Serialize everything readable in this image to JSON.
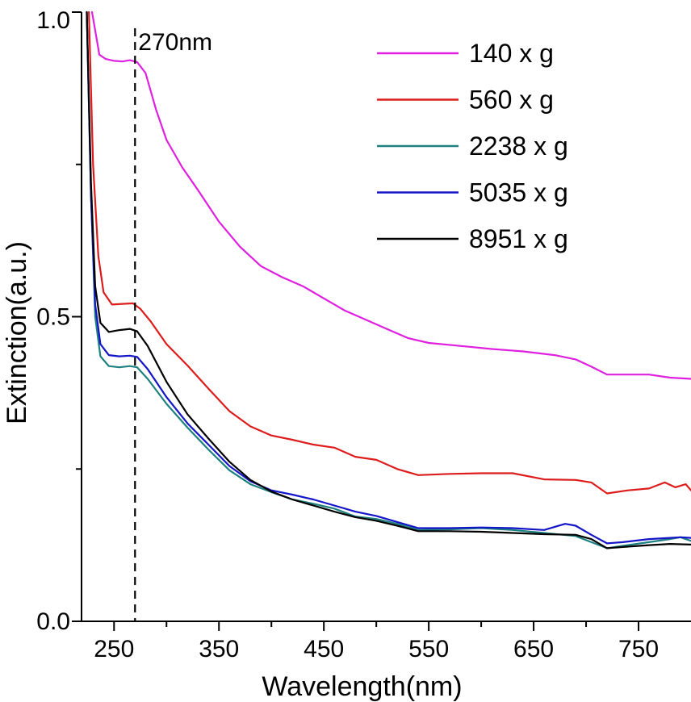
{
  "chart_data": {
    "type": "line",
    "title": "",
    "xlabel": "Wavelength(nm)",
    "ylabel": "Extinction(a.u.)",
    "xlim": [
      219,
      800
    ],
    "ylim": [
      0.0,
      1.0
    ],
    "x_ticks": [
      250,
      350,
      450,
      550,
      650,
      750
    ],
    "x_tick_labels": [
      "250",
      "350",
      "450",
      "550",
      "650",
      "750"
    ],
    "x_minor_ticks": [
      300,
      400,
      500,
      600,
      700
    ],
    "y_ticks": [
      0.0,
      0.5,
      1.0
    ],
    "y_tick_labels": [
      "0.0",
      "0.5",
      "1.0"
    ],
    "y_minor_ticks": [
      0.25,
      0.75
    ],
    "grid": false,
    "legend_position": "top-right",
    "annotations": [
      {
        "type": "vline",
        "x": 270,
        "label": "270nm",
        "style": "dashed",
        "color": "#000000"
      }
    ],
    "series": [
      {
        "name": "140 x g",
        "color": "#e020e0",
        "points": [
          [
            229,
            1.0
          ],
          [
            232,
            0.97
          ],
          [
            236,
            0.93
          ],
          [
            242,
            0.923
          ],
          [
            250,
            0.92
          ],
          [
            258,
            0.919
          ],
          [
            265,
            0.921
          ],
          [
            272,
            0.918
          ],
          [
            280,
            0.9
          ],
          [
            290,
            0.84
          ],
          [
            300,
            0.79
          ],
          [
            315,
            0.745
          ],
          [
            330,
            0.708
          ],
          [
            350,
            0.656
          ],
          [
            370,
            0.615
          ],
          [
            390,
            0.583
          ],
          [
            410,
            0.565
          ],
          [
            430,
            0.55
          ],
          [
            450,
            0.53
          ],
          [
            470,
            0.51
          ],
          [
            490,
            0.495
          ],
          [
            510,
            0.48
          ],
          [
            530,
            0.465
          ],
          [
            550,
            0.457
          ],
          [
            580,
            0.452
          ],
          [
            610,
            0.447
          ],
          [
            640,
            0.443
          ],
          [
            670,
            0.437
          ],
          [
            690,
            0.43
          ],
          [
            705,
            0.418
          ],
          [
            720,
            0.405
          ],
          [
            735,
            0.405
          ],
          [
            760,
            0.405
          ],
          [
            780,
            0.4
          ],
          [
            800,
            0.398
          ]
        ]
      },
      {
        "name": "560 x g",
        "color": "#dd1c1c",
        "points": [
          [
            226,
            1.0
          ],
          [
            230,
            0.75
          ],
          [
            235,
            0.6
          ],
          [
            240,
            0.54
          ],
          [
            248,
            0.52
          ],
          [
            258,
            0.521
          ],
          [
            268,
            0.522
          ],
          [
            275,
            0.513
          ],
          [
            285,
            0.492
          ],
          [
            300,
            0.455
          ],
          [
            320,
            0.42
          ],
          [
            340,
            0.382
          ],
          [
            360,
            0.345
          ],
          [
            380,
            0.32
          ],
          [
            400,
            0.305
          ],
          [
            420,
            0.298
          ],
          [
            440,
            0.29
          ],
          [
            460,
            0.285
          ],
          [
            480,
            0.27
          ],
          [
            500,
            0.265
          ],
          [
            520,
            0.25
          ],
          [
            540,
            0.24
          ],
          [
            570,
            0.242
          ],
          [
            600,
            0.243
          ],
          [
            630,
            0.243
          ],
          [
            660,
            0.233
          ],
          [
            690,
            0.232
          ],
          [
            705,
            0.228
          ],
          [
            720,
            0.21
          ],
          [
            740,
            0.215
          ],
          [
            760,
            0.218
          ],
          [
            775,
            0.228
          ],
          [
            785,
            0.22
          ],
          [
            795,
            0.225
          ],
          [
            800,
            0.215
          ]
        ]
      },
      {
        "name": "2238 x g",
        "color": "#1f8080",
        "points": [
          [
            224,
            1.0
          ],
          [
            228,
            0.7
          ],
          [
            232,
            0.5
          ],
          [
            237,
            0.435
          ],
          [
            245,
            0.419
          ],
          [
            255,
            0.417
          ],
          [
            265,
            0.419
          ],
          [
            272,
            0.417
          ],
          [
            282,
            0.398
          ],
          [
            300,
            0.357
          ],
          [
            320,
            0.318
          ],
          [
            340,
            0.282
          ],
          [
            360,
            0.248
          ],
          [
            380,
            0.225
          ],
          [
            400,
            0.212
          ],
          [
            420,
            0.2
          ],
          [
            440,
            0.193
          ],
          [
            460,
            0.185
          ],
          [
            480,
            0.172
          ],
          [
            500,
            0.168
          ],
          [
            520,
            0.16
          ],
          [
            540,
            0.15
          ],
          [
            570,
            0.151
          ],
          [
            600,
            0.153
          ],
          [
            630,
            0.15
          ],
          [
            660,
            0.145
          ],
          [
            690,
            0.14
          ],
          [
            705,
            0.13
          ],
          [
            720,
            0.12
          ],
          [
            735,
            0.124
          ],
          [
            760,
            0.13
          ],
          [
            780,
            0.135
          ],
          [
            790,
            0.138
          ],
          [
            800,
            0.132
          ]
        ]
      },
      {
        "name": "5035 x g",
        "color": "#1414c8",
        "points": [
          [
            224,
            1.0
          ],
          [
            228,
            0.7
          ],
          [
            232,
            0.52
          ],
          [
            237,
            0.455
          ],
          [
            245,
            0.437
          ],
          [
            255,
            0.435
          ],
          [
            265,
            0.436
          ],
          [
            272,
            0.434
          ],
          [
            282,
            0.414
          ],
          [
            300,
            0.368
          ],
          [
            320,
            0.325
          ],
          [
            340,
            0.29
          ],
          [
            360,
            0.255
          ],
          [
            380,
            0.23
          ],
          [
            400,
            0.215
          ],
          [
            420,
            0.208
          ],
          [
            440,
            0.2
          ],
          [
            460,
            0.19
          ],
          [
            480,
            0.18
          ],
          [
            500,
            0.173
          ],
          [
            520,
            0.163
          ],
          [
            540,
            0.153
          ],
          [
            570,
            0.153
          ],
          [
            600,
            0.154
          ],
          [
            630,
            0.153
          ],
          [
            660,
            0.15
          ],
          [
            680,
            0.16
          ],
          [
            690,
            0.157
          ],
          [
            705,
            0.142
          ],
          [
            720,
            0.128
          ],
          [
            735,
            0.13
          ],
          [
            760,
            0.135
          ],
          [
            780,
            0.137
          ],
          [
            790,
            0.138
          ],
          [
            800,
            0.137
          ]
        ]
      },
      {
        "name": "8951 x g",
        "color": "#000000",
        "points": [
          [
            224,
            1.0
          ],
          [
            228,
            0.72
          ],
          [
            232,
            0.55
          ],
          [
            237,
            0.49
          ],
          [
            245,
            0.475
          ],
          [
            255,
            0.478
          ],
          [
            265,
            0.48
          ],
          [
            272,
            0.476
          ],
          [
            282,
            0.452
          ],
          [
            300,
            0.393
          ],
          [
            320,
            0.34
          ],
          [
            340,
            0.3
          ],
          [
            360,
            0.262
          ],
          [
            380,
            0.232
          ],
          [
            400,
            0.213
          ],
          [
            420,
            0.2
          ],
          [
            440,
            0.19
          ],
          [
            460,
            0.18
          ],
          [
            480,
            0.171
          ],
          [
            500,
            0.165
          ],
          [
            520,
            0.157
          ],
          [
            540,
            0.148
          ],
          [
            570,
            0.148
          ],
          [
            600,
            0.147
          ],
          [
            630,
            0.145
          ],
          [
            660,
            0.143
          ],
          [
            690,
            0.142
          ],
          [
            705,
            0.135
          ],
          [
            720,
            0.12
          ],
          [
            735,
            0.122
          ],
          [
            760,
            0.125
          ],
          [
            780,
            0.127
          ],
          [
            800,
            0.126
          ]
        ]
      }
    ]
  }
}
